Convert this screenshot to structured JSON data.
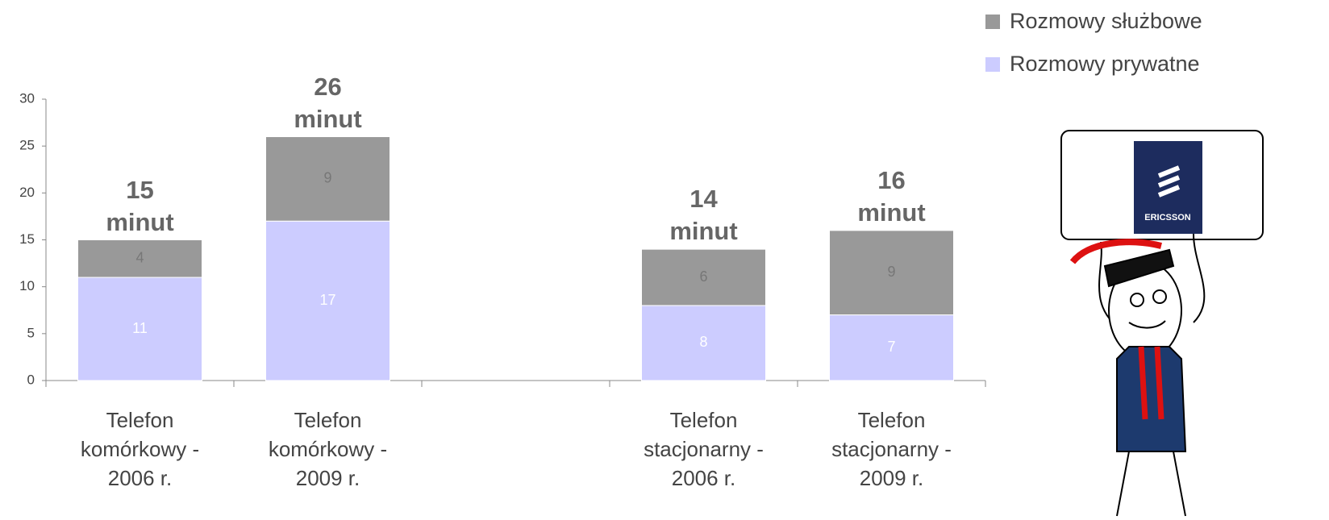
{
  "chart_data": {
    "type": "stacked_bar",
    "categories": [
      "Telefon komórkowy - 2006 r.",
      "Telefon komórkowy - 2009 r.",
      null,
      "Telefon stacjonarny - 2006 r.",
      "Telefon stacjonarny - 2009 r."
    ],
    "series": [
      {
        "name": "Rozmowy prywatne",
        "color": "#ccccff",
        "label_color": "#ffffff",
        "values": [
          11,
          17,
          null,
          8,
          7
        ]
      },
      {
        "name": "Rozmowy służbowe",
        "color": "#999999",
        "label_color": "#777777",
        "values": [
          4,
          9,
          null,
          6,
          9
        ]
      }
    ],
    "total_labels": [
      "15 minut",
      "26 minut",
      null,
      "14 minut",
      "16 minut"
    ],
    "ylim": [
      0,
      30
    ],
    "yticks": [
      0,
      5,
      10,
      15,
      20,
      25,
      30
    ],
    "grid": false,
    "legend": "top-right"
  },
  "illustration": {
    "logo": "ERICSSON"
  }
}
